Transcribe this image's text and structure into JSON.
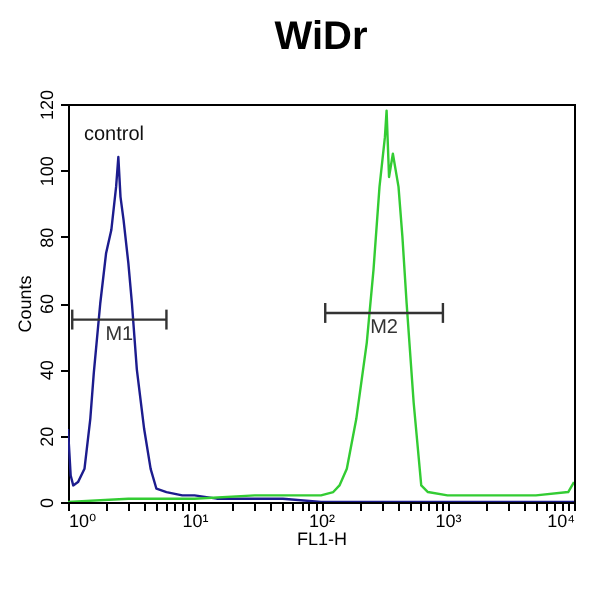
{
  "chart_data": {
    "type": "line",
    "title": "WiDr",
    "xlabel": "FL1-H",
    "ylabel": "Counts",
    "log": "x",
    "grid": false,
    "marker": "none",
    "xlim": [
      1,
      10000
    ],
    "ylim": [
      0,
      120
    ],
    "xticks": [
      {
        "value": 1,
        "label": "10⁰"
      },
      {
        "value": 2,
        "label": null
      },
      {
        "value": 3,
        "label": null
      },
      {
        "value": 4,
        "label": null
      },
      {
        "value": 5,
        "label": null
      },
      {
        "value": 6,
        "label": null
      },
      {
        "value": 7,
        "label": null
      },
      {
        "value": 8,
        "label": null
      },
      {
        "value": 9,
        "label": null
      },
      {
        "value": 10,
        "label": "10¹"
      },
      {
        "value": 20,
        "label": null
      },
      {
        "value": 30,
        "label": null
      },
      {
        "value": 40,
        "label": null
      },
      {
        "value": 50,
        "label": null
      },
      {
        "value": 60,
        "label": null
      },
      {
        "value": 70,
        "label": null
      },
      {
        "value": 80,
        "label": null
      },
      {
        "value": 90,
        "label": null
      },
      {
        "value": 100,
        "label": "10²"
      },
      {
        "value": 200,
        "label": null
      },
      {
        "value": 300,
        "label": null
      },
      {
        "value": 400,
        "label": null
      },
      {
        "value": 500,
        "label": null
      },
      {
        "value": 600,
        "label": null
      },
      {
        "value": 700,
        "label": null
      },
      {
        "value": 800,
        "label": null
      },
      {
        "value": 900,
        "label": null
      },
      {
        "value": 1000,
        "label": "10³"
      },
      {
        "value": 2000,
        "label": null
      },
      {
        "value": 3000,
        "label": null
      },
      {
        "value": 4000,
        "label": null
      },
      {
        "value": 5000,
        "label": null
      },
      {
        "value": 6000,
        "label": null
      },
      {
        "value": 7000,
        "label": null
      },
      {
        "value": 8000,
        "label": null
      },
      {
        "value": 9000,
        "label": null
      },
      {
        "value": 10000,
        "label": "10⁴"
      }
    ],
    "yticks": [
      0,
      20,
      40,
      60,
      80,
      100,
      120
    ],
    "series": [
      {
        "color": "#1c1c8e",
        "x": [
          1,
          1.05,
          1.1,
          1.2,
          1.35,
          1.5,
          1.6,
          1.8,
          2.0,
          2.2,
          2.4,
          2.5,
          2.6,
          2.75,
          3.0,
          3.2,
          3.5,
          4.0,
          4.5,
          5.0,
          6,
          8,
          10,
          15,
          20,
          30,
          50,
          100,
          1000,
          10000
        ],
        "values": [
          22,
          8,
          5,
          6,
          10,
          25,
          39,
          60,
          75,
          82,
          95,
          104,
          92,
          85,
          72,
          60,
          40,
          22,
          10,
          4,
          3,
          2,
          2,
          1,
          1,
          1,
          1,
          0,
          0,
          0
        ]
      },
      {
        "color": "#33cc33",
        "x": [
          1,
          3,
          10,
          30,
          60,
          100,
          125,
          140,
          160,
          190,
          230,
          260,
          290,
          320,
          330,
          345,
          370,
          410,
          440,
          475,
          540,
          620,
          700,
          1000,
          2000,
          5000,
          9000,
          10000
        ],
        "values": [
          0,
          1,
          1,
          2,
          2,
          2,
          3,
          5,
          10,
          25,
          48,
          70,
          95,
          110,
          118,
          98,
          105,
          95,
          80,
          60,
          30,
          5,
          3,
          2,
          2,
          2,
          3,
          6
        ]
      },
      {
        "name": "M1",
        "color": "#333333",
        "x": [
          1.08,
          6
        ],
        "values": [
          55,
          55
        ],
        "errors": [
          3,
          3
        ]
      },
      {
        "name": "M2",
        "color": "#333333",
        "x": [
          108,
          920
        ],
        "values": [
          57,
          57
        ],
        "errors": [
          3,
          3
        ]
      }
    ],
    "annotations": [
      "control"
    ]
  }
}
